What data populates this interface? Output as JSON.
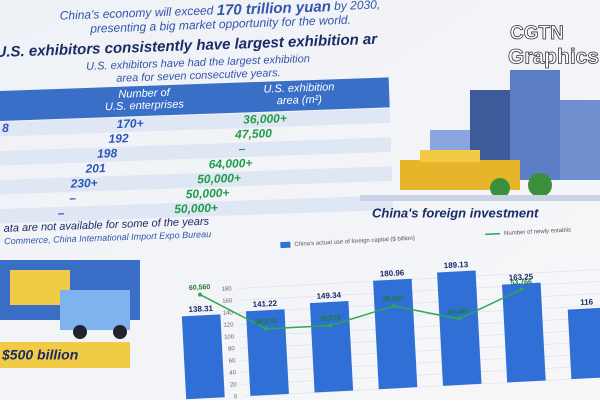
{
  "header": {
    "line1_pre": "China's economy will exceed",
    "line1_highlight": "170 trillion yuan",
    "line1_post": "by 2030,",
    "line2": "presenting a big market opportunity for the world."
  },
  "exhibit": {
    "title": "U.S. exhibitors consistently have largest exhibition ar",
    "subtitle_1": "U.S. exhibitors have had the largest exhibition",
    "subtitle_2": "area for seven consecutive years.",
    "columns": [
      [
        "Number of",
        "U.S. enterprises"
      ],
      [
        "U.S. exhibition",
        "area (m²)"
      ]
    ],
    "rows": [
      [
        "8",
        "170+",
        "36,000+"
      ],
      [
        null,
        "192",
        "47,500"
      ],
      [
        null,
        "198",
        "–"
      ],
      [
        null,
        "201",
        "64,000+"
      ],
      [
        null,
        "230+",
        "50,000+"
      ],
      [
        null,
        "–",
        "50,000+"
      ],
      [
        null,
        "–",
        "50,000+"
      ]
    ],
    "note": "ata are not available for some of the years",
    "source": "Commerce, China International Import Expo Bureau"
  },
  "logo": {
    "line1": "CGTN",
    "line2": "Graphics"
  },
  "banner": "$500 billion",
  "chart_data": {
    "type": "bar",
    "title": "China's foreign investment",
    "categories": [
      null,
      null,
      null,
      null,
      null,
      null,
      null
    ],
    "series": [
      {
        "name": "China's actual use of foreign capital ($ billion)",
        "color": "#2f6fd6",
        "values": [
          138.31,
          141.22,
          149.34,
          180.96,
          189.13,
          163.25,
          116
        ]
      },
      {
        "name": "Number of newly establis",
        "color": "#2fa84f",
        "axis": "y2",
        "values": [
          60560,
          38570,
          38578,
          48000,
          38497,
          53766,
          null
        ],
        "value_labels": [
          "60,560",
          "38,570",
          "38,578",
          "48,000",
          "38,497",
          "53,766",
          null
        ]
      }
    ],
    "ylim": [
      0,
      200
    ],
    "yticks": [
      0,
      20,
      40,
      60,
      80,
      100,
      120,
      140,
      160,
      180
    ],
    "y2lim": [
      0,
      70000
    ]
  }
}
